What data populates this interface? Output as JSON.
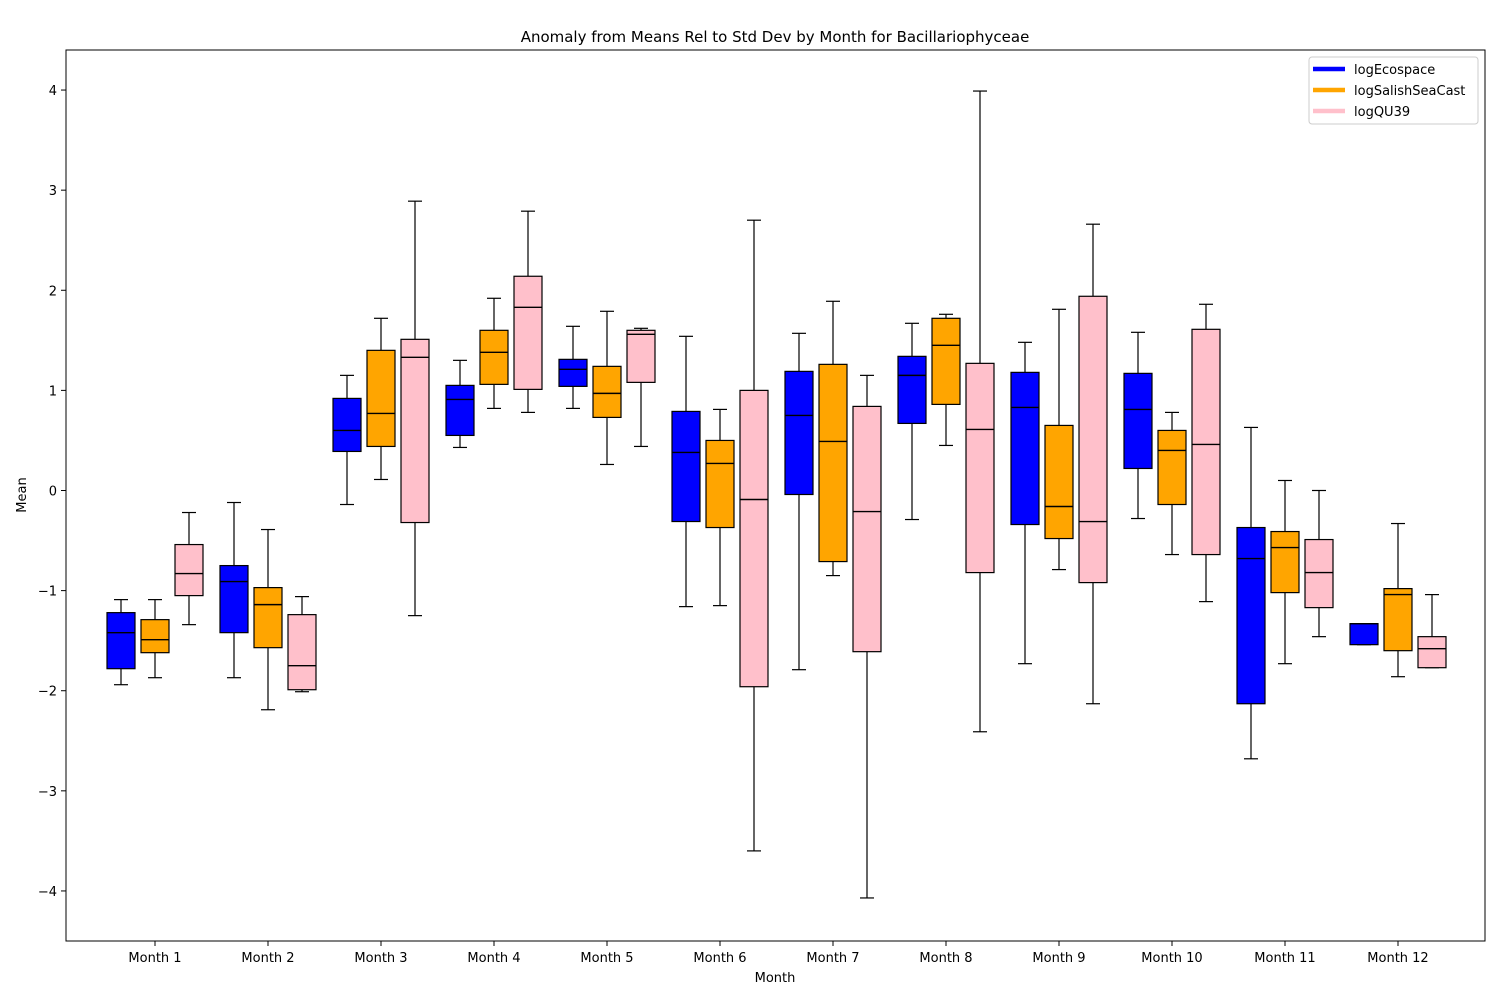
{
  "chart_data": {
    "type": "boxplot",
    "title": "Anomaly from Means Rel to Std Dev by Month for Bacillariophyceae",
    "xlabel": "Month",
    "ylabel": "Mean",
    "ylim": [
      -4.5,
      4.4
    ],
    "yticks": [
      -4,
      -3,
      -2,
      -1,
      0,
      1,
      2,
      3,
      4
    ],
    "ytick_labels": [
      "−4",
      "−3",
      "−2",
      "−1",
      "0",
      "1",
      "2",
      "3",
      "4"
    ],
    "categories": [
      "Month 1",
      "Month 2",
      "Month 3",
      "Month 4",
      "Month 5",
      "Month 6",
      "Month 7",
      "Month 8",
      "Month 9",
      "Month 10",
      "Month 11",
      "Month 12"
    ],
    "legend_position": "top-right",
    "series": [
      {
        "name": "logEcospace",
        "color": "#0000ff",
        "boxes": [
          {
            "whislo": -1.94,
            "q1": -1.78,
            "med": -1.42,
            "q3": -1.22,
            "whishi": -1.09
          },
          {
            "whislo": -1.87,
            "q1": -1.42,
            "med": -0.91,
            "q3": -0.75,
            "whishi": -0.12
          },
          {
            "whislo": -0.14,
            "q1": 0.39,
            "med": 0.6,
            "q3": 0.92,
            "whishi": 1.15
          },
          {
            "whislo": 0.43,
            "q1": 0.55,
            "med": 0.91,
            "q3": 1.05,
            "whishi": 1.3
          },
          {
            "whislo": 0.82,
            "q1": 1.04,
            "med": 1.21,
            "q3": 1.31,
            "whishi": 1.64
          },
          {
            "whislo": -1.16,
            "q1": -0.31,
            "med": 0.38,
            "q3": 0.79,
            "whishi": 1.54
          },
          {
            "whislo": -1.79,
            "q1": -0.04,
            "med": 0.75,
            "q3": 1.19,
            "whishi": 1.57
          },
          {
            "whislo": -0.29,
            "q1": 0.67,
            "med": 1.15,
            "q3": 1.34,
            "whishi": 1.67
          },
          {
            "whislo": -1.73,
            "q1": -0.34,
            "med": 0.83,
            "q3": 1.18,
            "whishi": 1.48
          },
          {
            "whislo": -0.28,
            "q1": 0.22,
            "med": 0.81,
            "q3": 1.17,
            "whishi": 1.58
          },
          {
            "whislo": -2.68,
            "q1": -2.13,
            "med": -0.68,
            "q3": -0.37,
            "whishi": 0.63
          },
          {
            "whislo": -1.54,
            "q1": -1.54,
            "med": -1.33,
            "q3": -1.33,
            "whishi": -1.33
          }
        ]
      },
      {
        "name": "logSalishSeaCast",
        "color": "#ffa500",
        "boxes": [
          {
            "whislo": -1.87,
            "q1": -1.62,
            "med": -1.49,
            "q3": -1.29,
            "whishi": -1.09
          },
          {
            "whislo": -2.19,
            "q1": -1.57,
            "med": -1.14,
            "q3": -0.97,
            "whishi": -0.39
          },
          {
            "whislo": 0.11,
            "q1": 0.44,
            "med": 0.77,
            "q3": 1.4,
            "whishi": 1.72
          },
          {
            "whislo": 0.82,
            "q1": 1.06,
            "med": 1.38,
            "q3": 1.6,
            "whishi": 1.92
          },
          {
            "whislo": 0.26,
            "q1": 0.73,
            "med": 0.97,
            "q3": 1.24,
            "whishi": 1.79
          },
          {
            "whislo": -1.15,
            "q1": -0.37,
            "med": 0.27,
            "q3": 0.5,
            "whishi": 0.81
          },
          {
            "whislo": -0.85,
            "q1": -0.71,
            "med": 0.49,
            "q3": 1.26,
            "whishi": 1.89
          },
          {
            "whislo": 0.45,
            "q1": 0.86,
            "med": 1.45,
            "q3": 1.72,
            "whishi": 1.76
          },
          {
            "whislo": -0.79,
            "q1": -0.48,
            "med": -0.16,
            "q3": 0.65,
            "whishi": 1.81
          },
          {
            "whislo": -0.64,
            "q1": -0.14,
            "med": 0.4,
            "q3": 0.6,
            "whishi": 0.78
          },
          {
            "whislo": -1.73,
            "q1": -1.02,
            "med": -0.57,
            "q3": -0.41,
            "whishi": 0.1
          },
          {
            "whislo": -1.86,
            "q1": -1.6,
            "med": -1.04,
            "q3": -0.98,
            "whishi": -0.33
          }
        ]
      },
      {
        "name": "logQU39",
        "color": "#ffc0cb",
        "boxes": [
          {
            "whislo": -1.34,
            "q1": -1.05,
            "med": -0.83,
            "q3": -0.54,
            "whishi": -0.22
          },
          {
            "whislo": -2.01,
            "q1": -1.99,
            "med": -1.75,
            "q3": -1.24,
            "whishi": -1.06
          },
          {
            "whislo": -1.25,
            "q1": -0.32,
            "med": 1.33,
            "q3": 1.51,
            "whishi": 2.89
          },
          {
            "whislo": 0.78,
            "q1": 1.01,
            "med": 1.83,
            "q3": 2.14,
            "whishi": 2.79
          },
          {
            "whislo": 0.44,
            "q1": 1.08,
            "med": 1.56,
            "q3": 1.6,
            "whishi": 1.62
          },
          {
            "whislo": -3.6,
            "q1": -1.96,
            "med": -0.09,
            "q3": 1.0,
            "whishi": 2.7
          },
          {
            "whislo": -4.07,
            "q1": -1.61,
            "med": -0.21,
            "q3": 0.84,
            "whishi": 1.15
          },
          {
            "whislo": -2.41,
            "q1": -0.82,
            "med": 0.61,
            "q3": 1.27,
            "whishi": 3.99
          },
          {
            "whislo": -2.13,
            "q1": -0.92,
            "med": -0.31,
            "q3": 1.94,
            "whishi": 2.66
          },
          {
            "whislo": -1.11,
            "q1": -0.64,
            "med": 0.46,
            "q3": 1.61,
            "whishi": 1.86
          },
          {
            "whislo": -1.46,
            "q1": -1.17,
            "med": -0.82,
            "q3": -0.49,
            "whishi": 0.0
          },
          {
            "whislo": -1.77,
            "q1": -1.77,
            "med": -1.58,
            "q3": -1.46,
            "whishi": -1.04
          }
        ]
      }
    ]
  }
}
